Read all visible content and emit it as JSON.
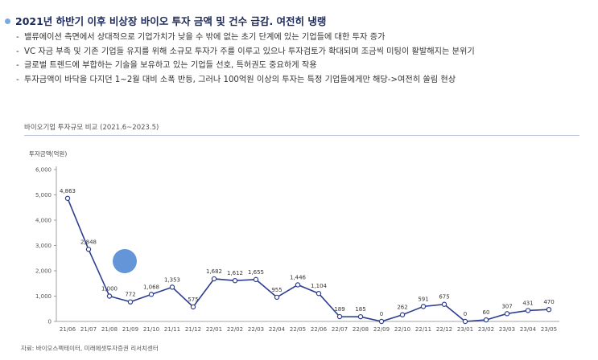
{
  "headline": "2021년 하반기 이후 비상장 바이오 투자 금액 및 건수 급감. 여전히 냉랭",
  "bullets": [
    "밸류에이션 측면에서 상대적으로 기업가치가 낮을 수 밖에 없는 초기 단계에 있는 기업들에 대한 투자 증가",
    "VC 자금 부족 및 기존 기업들 유지를 위해 소규모 투자가 주를 이루고 있으나 투자검토가 확대되며 조금씩 미팅이 활발해지는 분위기",
    "글로벌 트렌드에 부합하는 기술을 보유하고 있는 기업들 선호, 특허권도 중요하게 작용",
    "투자금액이 바닥을 다지던 1~2월 대비 소폭 반등, 그러나 100억원 이상의 투자는 특정 기업들에게만 해당->여전히 쏠림 현상"
  ],
  "source": "자료: 바이오스펙테이터, 미래에셋투자증권 리서치센터",
  "colors": {
    "line": "#2e3f8f",
    "marker_fill": "#ffffff",
    "circle": "#5b8fd6",
    "axis": "#888888",
    "headline": "#1d2a5b"
  },
  "chart_data": {
    "type": "line",
    "title": "바이오기업 투자규모 비교 (2021.6~2023.5)",
    "ylabel": "투자금액(억원)",
    "xlabel": "",
    "ylim": [
      0,
      6000
    ],
    "yticks": [
      0,
      1000,
      2000,
      3000,
      4000,
      5000,
      6000
    ],
    "ytick_labels": [
      "0",
      "1,000",
      "2,000",
      "3,000",
      "4,000",
      "5,000",
      "6,000"
    ],
    "grid": false,
    "categories": [
      "21/06",
      "21/07",
      "21/08",
      "21/09",
      "21/10",
      "21/11",
      "21/12",
      "22/01",
      "22/02",
      "22/03",
      "22/04",
      "22/05",
      "22/06",
      "22/07",
      "22/08",
      "22/09",
      "22/10",
      "22/11",
      "22/12",
      "23/01",
      "23/02",
      "23/03",
      "23/04",
      "23/05"
    ],
    "values": [
      4863,
      2848,
      1000,
      772,
      1068,
      1353,
      575,
      1682,
      1612,
      1655,
      955,
      1446,
      1104,
      189,
      185,
      0,
      262,
      591,
      675,
      0,
      60,
      307,
      431,
      470
    ],
    "value_labels": [
      "4,863",
      "2,848",
      "1,000",
      "772",
      "1,068",
      "1,353",
      "575",
      "1,682",
      "1,612",
      "1,655",
      "955",
      "1,446",
      "1,104",
      "189",
      "185",
      "0",
      "262",
      "591",
      "675",
      "0",
      "60",
      "307",
      "431",
      "470"
    ]
  }
}
